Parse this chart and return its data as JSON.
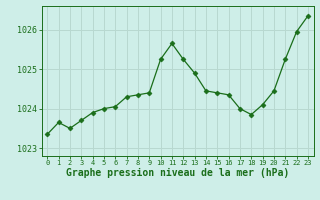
{
  "x": [
    0,
    1,
    2,
    3,
    4,
    5,
    6,
    7,
    8,
    9,
    10,
    11,
    12,
    13,
    14,
    15,
    16,
    17,
    18,
    19,
    20,
    21,
    22,
    23
  ],
  "y": [
    1023.35,
    1023.65,
    1023.5,
    1023.7,
    1023.9,
    1024.0,
    1024.05,
    1024.3,
    1024.35,
    1024.4,
    1025.25,
    1025.65,
    1025.25,
    1024.9,
    1024.45,
    1024.4,
    1024.35,
    1024.0,
    1023.85,
    1024.1,
    1024.45,
    1025.25,
    1025.95,
    1026.35
  ],
  "line_color": "#1a6e1a",
  "marker": "D",
  "marker_size": 2.5,
  "bg_color": "#ceeee8",
  "grid_color": "#b8d8d0",
  "xlabel": "Graphe pression niveau de la mer (hPa)",
  "xlabel_color": "#1a6e1a",
  "tick_color": "#1a6e1a",
  "ylim": [
    1022.8,
    1026.6
  ],
  "yticks": [
    1023,
    1024,
    1025,
    1026
  ],
  "xlim": [
    -0.5,
    23.5
  ],
  "xticks": [
    0,
    1,
    2,
    3,
    4,
    5,
    6,
    7,
    8,
    9,
    10,
    11,
    12,
    13,
    14,
    15,
    16,
    17,
    18,
    19,
    20,
    21,
    22,
    23
  ]
}
